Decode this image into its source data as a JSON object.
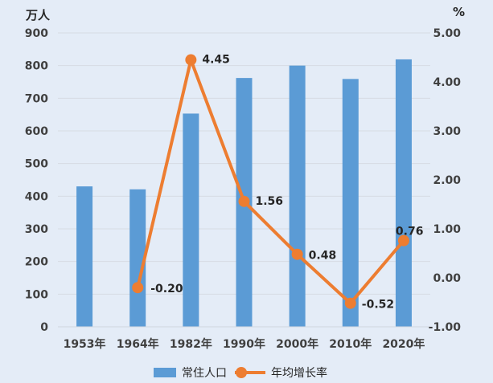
{
  "chart_data": {
    "type": "bar+line",
    "categories": [
      "1953年",
      "1964年",
      "1982年",
      "1990年",
      "2000年",
      "2010年",
      "2020年"
    ],
    "series": [
      {
        "name": "常住人口",
        "type": "bar",
        "axis": "left",
        "color": "#5b9bd5",
        "values": [
          430,
          421,
          653,
          762,
          800,
          759,
          819
        ]
      },
      {
        "name": "年均增长率",
        "type": "line",
        "axis": "right",
        "color": "#ed7d31",
        "values": [
          null,
          -0.2,
          4.45,
          1.56,
          0.48,
          -0.52,
          0.76
        ],
        "data_labels": [
          "",
          "-0.20",
          "4.45",
          "1.56",
          "0.48",
          "-0.52",
          "0.76"
        ]
      }
    ],
    "y_left": {
      "unit": "万人",
      "range": [
        0,
        900
      ],
      "ticks": [
        "0",
        "100",
        "200",
        "300",
        "400",
        "500",
        "600",
        "700",
        "800",
        "900"
      ]
    },
    "y_right": {
      "unit": "%",
      "range": [
        -1.0,
        5.0
      ],
      "ticks": [
        "-1.00",
        "0.00",
        "1.00",
        "2.00",
        "3.00",
        "4.00",
        "5.00"
      ]
    },
    "grid": true,
    "legend_position": "bottom"
  }
}
